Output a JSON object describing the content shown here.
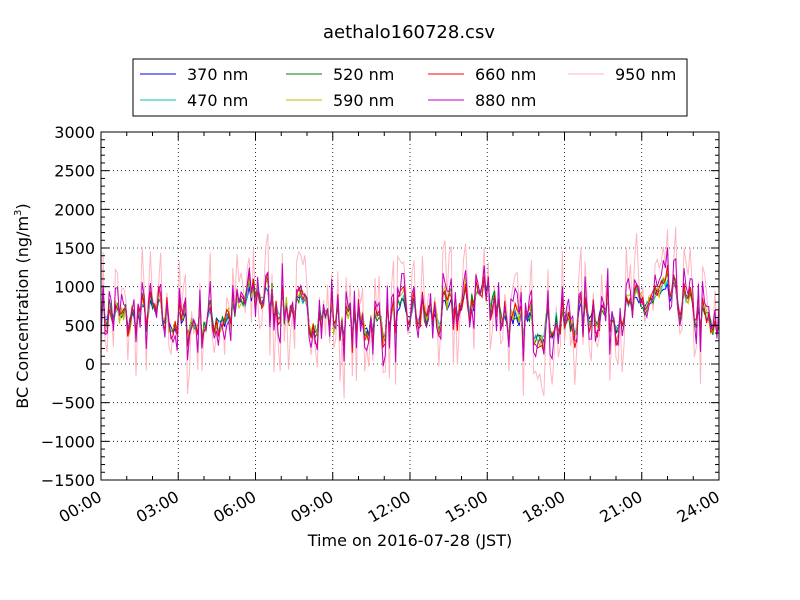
{
  "chart_data": {
    "type": "line",
    "title": "aethalo160728.csv",
    "xlabel": "Time on 2016-07-28 (JST)",
    "ylabel_main": "BC Concentration (ng/m",
    "ylabel_sup": "3",
    "ylabel_tail": ")",
    "ylim": [
      -1500,
      3000
    ],
    "yticks": [
      -1500,
      -1000,
      -500,
      0,
      500,
      1000,
      1500,
      2000,
      2500,
      3000
    ],
    "xlim_hours": [
      0,
      24
    ],
    "xtick_hours": [
      0,
      3,
      6,
      9,
      12,
      15,
      18,
      21,
      24
    ],
    "xtick_labels": [
      "00:00",
      "03:00",
      "06:00",
      "09:00",
      "12:00",
      "15:00",
      "18:00",
      "21:00",
      "24:00"
    ],
    "grid": true,
    "legend_position": "top-center",
    "baseline_profile": {
      "hours": [
        0,
        1,
        2,
        3,
        4,
        5,
        6,
        7,
        8,
        9,
        10,
        11,
        12,
        13,
        14,
        15,
        16,
        17,
        18,
        19,
        20,
        21,
        22,
        23,
        24
      ],
      "values": [
        700,
        550,
        700,
        500,
        550,
        600,
        950,
        750,
        650,
        600,
        500,
        550,
        650,
        600,
        750,
        1000,
        450,
        550,
        500,
        700,
        650,
        750,
        900,
        700,
        350
      ]
    },
    "series": [
      {
        "name": "370 nm",
        "color": "#0000ff",
        "amplitude": 260
      },
      {
        "name": "470 nm",
        "color": "#00bfbf",
        "amplitude": 300
      },
      {
        "name": "520 nm",
        "color": "#008000",
        "amplitude": 340
      },
      {
        "name": "590 nm",
        "color": "#bfbf00",
        "amplitude": 380
      },
      {
        "name": "660 nm",
        "color": "#ff0000",
        "amplitude": 420
      },
      {
        "name": "880 nm",
        "color": "#bf00bf",
        "amplitude": 620
      },
      {
        "name": "950 nm",
        "color": "#ffb6c1",
        "amplitude": 1050
      }
    ]
  }
}
